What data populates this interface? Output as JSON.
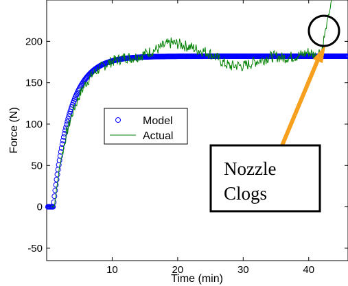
{
  "chart_data": {
    "type": "line",
    "title": "",
    "xlabel": "Time (min)",
    "ylabel": "Force (N)",
    "xlim": [
      0,
      46
    ],
    "ylim": [
      -65,
      250
    ],
    "xticks": [
      10,
      20,
      30,
      40
    ],
    "yticks": [
      -50,
      0,
      50,
      100,
      150,
      200
    ],
    "grid": false,
    "legend_position": "center-left",
    "series": [
      {
        "name": "Model",
        "style": "markers",
        "marker": "circle",
        "color": "#0000ff",
        "description": "first-order step response: 0 until t=1, rising to a plateau of about 182 N",
        "step_time": 1.0,
        "plateau": 182,
        "time_constant": 2.6
      },
      {
        "name": "Actual",
        "style": "line",
        "color": "#008000",
        "x": [
          0.8,
          1.2,
          2,
          3,
          4,
          5,
          6,
          7,
          8,
          9,
          10,
          11,
          12,
          13,
          14,
          15,
          16,
          17,
          18,
          19,
          20,
          21,
          22,
          23,
          24,
          25,
          26,
          27,
          28,
          29,
          30,
          31,
          32,
          33,
          34,
          35,
          36,
          37,
          38,
          39,
          40,
          41,
          42,
          42.5,
          43,
          43.6
        ],
        "y": [
          0,
          2,
          50,
          88,
          115,
          135,
          150,
          160,
          167,
          172,
          176,
          178,
          181,
          180,
          182,
          185,
          188,
          191,
          195,
          198,
          197,
          195,
          193,
          190,
          188,
          185,
          180,
          174,
          170,
          171,
          170,
          173,
          176,
          178,
          181,
          182,
          180,
          181,
          182,
          184,
          187,
          183,
          190,
          210,
          230,
          252
        ]
      }
    ],
    "annotation": {
      "text_lines": [
        "Nozzle",
        "Clogs"
      ],
      "circle_center": [
        42.8,
        206
      ],
      "arrow_color": "#f7a01e"
    }
  }
}
